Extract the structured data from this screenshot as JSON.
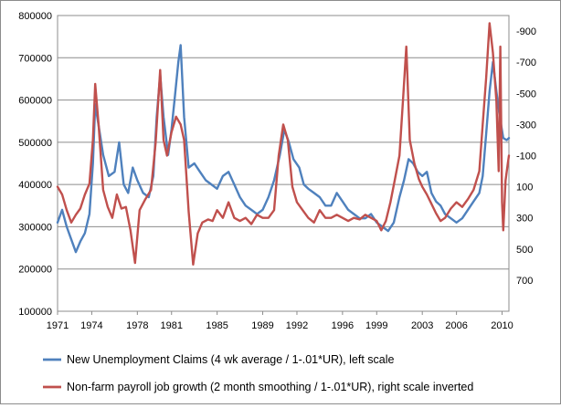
{
  "chart_data": {
    "type": "line",
    "title": "",
    "xlabel": "",
    "ylabel": "",
    "x_ticks": [
      "1971",
      "1974",
      "1978",
      "1981",
      "1985",
      "1989",
      "1992",
      "1996",
      "1999",
      "2003",
      "2006",
      "2010"
    ],
    "xlim": [
      1971.0,
      2010.6
    ],
    "left_axis": {
      "ticks": [
        "100000",
        "200000",
        "300000",
        "400000",
        "500000",
        "600000",
        "700000",
        "800000"
      ],
      "ylim": [
        100000,
        800000
      ]
    },
    "right_axis": {
      "ticks": [
        "-900",
        "-700",
        "-500",
        "-300",
        "-100",
        "100",
        "300",
        "500",
        "700"
      ],
      "ylim": [
        -1000,
        900
      ],
      "inverted": true
    },
    "grid": true,
    "legend_position": "bottom",
    "series": [
      {
        "name": "New Unemployment Claims (4 wk average / 1-.01*UR), left scale",
        "axis": "left",
        "color": "#4f81bd",
        "points": [
          [
            1971.0,
            310000
          ],
          [
            1971.4,
            340000
          ],
          [
            1971.8,
            300000
          ],
          [
            1972.2,
            270000
          ],
          [
            1972.6,
            240000
          ],
          [
            1973.0,
            265000
          ],
          [
            1973.4,
            285000
          ],
          [
            1973.8,
            330000
          ],
          [
            1974.1,
            450000
          ],
          [
            1974.3,
            590000
          ],
          [
            1974.6,
            540000
          ],
          [
            1975.0,
            470000
          ],
          [
            1975.5,
            420000
          ],
          [
            1976.0,
            430000
          ],
          [
            1976.4,
            500000
          ],
          [
            1976.8,
            400000
          ],
          [
            1977.2,
            380000
          ],
          [
            1977.6,
            440000
          ],
          [
            1978.0,
            410000
          ],
          [
            1978.5,
            380000
          ],
          [
            1979.0,
            370000
          ],
          [
            1979.4,
            420000
          ],
          [
            1979.7,
            560000
          ],
          [
            1980.0,
            660000
          ],
          [
            1980.3,
            560000
          ],
          [
            1980.7,
            470000
          ],
          [
            1981.0,
            530000
          ],
          [
            1981.3,
            610000
          ],
          [
            1981.6,
            690000
          ],
          [
            1981.8,
            730000
          ],
          [
            1982.1,
            560000
          ],
          [
            1982.5,
            440000
          ],
          [
            1983.0,
            450000
          ],
          [
            1983.5,
            430000
          ],
          [
            1984.0,
            410000
          ],
          [
            1984.5,
            400000
          ],
          [
            1985.0,
            390000
          ],
          [
            1985.5,
            420000
          ],
          [
            1986.0,
            430000
          ],
          [
            1986.5,
            400000
          ],
          [
            1987.0,
            370000
          ],
          [
            1987.5,
            350000
          ],
          [
            1988.0,
            340000
          ],
          [
            1988.5,
            330000
          ],
          [
            1989.0,
            340000
          ],
          [
            1989.5,
            370000
          ],
          [
            1990.0,
            410000
          ],
          [
            1990.5,
            470000
          ],
          [
            1990.9,
            530000
          ],
          [
            1991.3,
            500000
          ],
          [
            1991.7,
            460000
          ],
          [
            1992.2,
            440000
          ],
          [
            1992.6,
            400000
          ],
          [
            1993.0,
            390000
          ],
          [
            1993.5,
            380000
          ],
          [
            1994.0,
            370000
          ],
          [
            1994.5,
            350000
          ],
          [
            1995.0,
            350000
          ],
          [
            1995.5,
            380000
          ],
          [
            1996.0,
            360000
          ],
          [
            1996.5,
            340000
          ],
          [
            1997.0,
            330000
          ],
          [
            1997.5,
            320000
          ],
          [
            1998.0,
            320000
          ],
          [
            1998.5,
            330000
          ],
          [
            1999.0,
            310000
          ],
          [
            1999.5,
            300000
          ],
          [
            2000.0,
            290000
          ],
          [
            2000.5,
            310000
          ],
          [
            2001.0,
            370000
          ],
          [
            2001.4,
            410000
          ],
          [
            2001.8,
            460000
          ],
          [
            2002.2,
            450000
          ],
          [
            2002.6,
            430000
          ],
          [
            2003.0,
            420000
          ],
          [
            2003.4,
            430000
          ],
          [
            2003.8,
            380000
          ],
          [
            2004.2,
            360000
          ],
          [
            2004.6,
            350000
          ],
          [
            2005.0,
            330000
          ],
          [
            2005.5,
            320000
          ],
          [
            2006.0,
            310000
          ],
          [
            2006.5,
            320000
          ],
          [
            2007.0,
            340000
          ],
          [
            2007.5,
            360000
          ],
          [
            2008.0,
            380000
          ],
          [
            2008.3,
            420000
          ],
          [
            2008.6,
            520000
          ],
          [
            2008.9,
            620000
          ],
          [
            2009.2,
            690000
          ],
          [
            2009.5,
            620000
          ],
          [
            2009.8,
            560000
          ],
          [
            2010.1,
            510000
          ],
          [
            2010.4,
            505000
          ],
          [
            2010.6,
            510000
          ]
        ]
      },
      {
        "name": "Non-farm payroll job growth (2 month smoothing / 1-.01*UR), right scale inverted",
        "axis": "right",
        "color": "#c0504d",
        "points": [
          [
            1971.0,
            100
          ],
          [
            1971.4,
            150
          ],
          [
            1971.8,
            250
          ],
          [
            1972.2,
            330
          ],
          [
            1972.6,
            280
          ],
          [
            1973.0,
            240
          ],
          [
            1973.4,
            150
          ],
          [
            1973.8,
            80
          ],
          [
            1974.1,
            -200
          ],
          [
            1974.3,
            -560
          ],
          [
            1974.6,
            -300
          ],
          [
            1975.0,
            120
          ],
          [
            1975.4,
            230
          ],
          [
            1975.8,
            300
          ],
          [
            1976.2,
            150
          ],
          [
            1976.6,
            240
          ],
          [
            1977.0,
            230
          ],
          [
            1977.4,
            380
          ],
          [
            1977.8,
            590
          ],
          [
            1978.2,
            250
          ],
          [
            1978.7,
            180
          ],
          [
            1979.2,
            120
          ],
          [
            1979.6,
            -180
          ],
          [
            1980.0,
            -650
          ],
          [
            1980.3,
            -200
          ],
          [
            1980.6,
            -100
          ],
          [
            1981.0,
            -250
          ],
          [
            1981.4,
            -350
          ],
          [
            1981.8,
            -300
          ],
          [
            1982.1,
            -200
          ],
          [
            1982.5,
            260
          ],
          [
            1982.9,
            600
          ],
          [
            1983.3,
            400
          ],
          [
            1983.7,
            330
          ],
          [
            1984.2,
            310
          ],
          [
            1984.6,
            320
          ],
          [
            1985.0,
            250
          ],
          [
            1985.5,
            300
          ],
          [
            1986.0,
            200
          ],
          [
            1986.5,
            300
          ],
          [
            1987.0,
            320
          ],
          [
            1987.5,
            300
          ],
          [
            1988.0,
            340
          ],
          [
            1988.5,
            280
          ],
          [
            1989.0,
            300
          ],
          [
            1989.5,
            300
          ],
          [
            1990.0,
            250
          ],
          [
            1990.4,
            -100
          ],
          [
            1990.8,
            -300
          ],
          [
            1991.2,
            -200
          ],
          [
            1991.6,
            100
          ],
          [
            1992.0,
            200
          ],
          [
            1992.5,
            250
          ],
          [
            1993.0,
            300
          ],
          [
            1993.5,
            330
          ],
          [
            1994.0,
            250
          ],
          [
            1994.5,
            300
          ],
          [
            1995.0,
            300
          ],
          [
            1995.5,
            280
          ],
          [
            1996.0,
            300
          ],
          [
            1996.5,
            320
          ],
          [
            1997.0,
            300
          ],
          [
            1997.5,
            310
          ],
          [
            1998.0,
            280
          ],
          [
            1998.5,
            300
          ],
          [
            1999.0,
            320
          ],
          [
            1999.4,
            380
          ],
          [
            1999.8,
            320
          ],
          [
            2000.2,
            200
          ],
          [
            2000.6,
            50
          ],
          [
            2001.0,
            -100
          ],
          [
            2001.3,
            -450
          ],
          [
            2001.6,
            -800
          ],
          [
            2001.9,
            -200
          ],
          [
            2002.3,
            -50
          ],
          [
            2002.7,
            50
          ],
          [
            2003.0,
            100
          ],
          [
            2003.4,
            150
          ],
          [
            2003.8,
            210
          ],
          [
            2004.2,
            270
          ],
          [
            2004.6,
            320
          ],
          [
            2005.0,
            300
          ],
          [
            2005.5,
            240
          ],
          [
            2006.0,
            200
          ],
          [
            2006.5,
            230
          ],
          [
            2007.0,
            180
          ],
          [
            2007.5,
            120
          ],
          [
            2008.0,
            0
          ],
          [
            2008.3,
            -300
          ],
          [
            2008.6,
            -600
          ],
          [
            2008.9,
            -950
          ],
          [
            2009.2,
            -760
          ],
          [
            2009.5,
            -450
          ],
          [
            2009.7,
            0
          ],
          [
            2009.85,
            -800
          ],
          [
            2010.0,
            200
          ],
          [
            2010.1,
            380
          ],
          [
            2010.3,
            60
          ],
          [
            2010.5,
            -50
          ],
          [
            2010.6,
            -100
          ]
        ]
      }
    ]
  }
}
